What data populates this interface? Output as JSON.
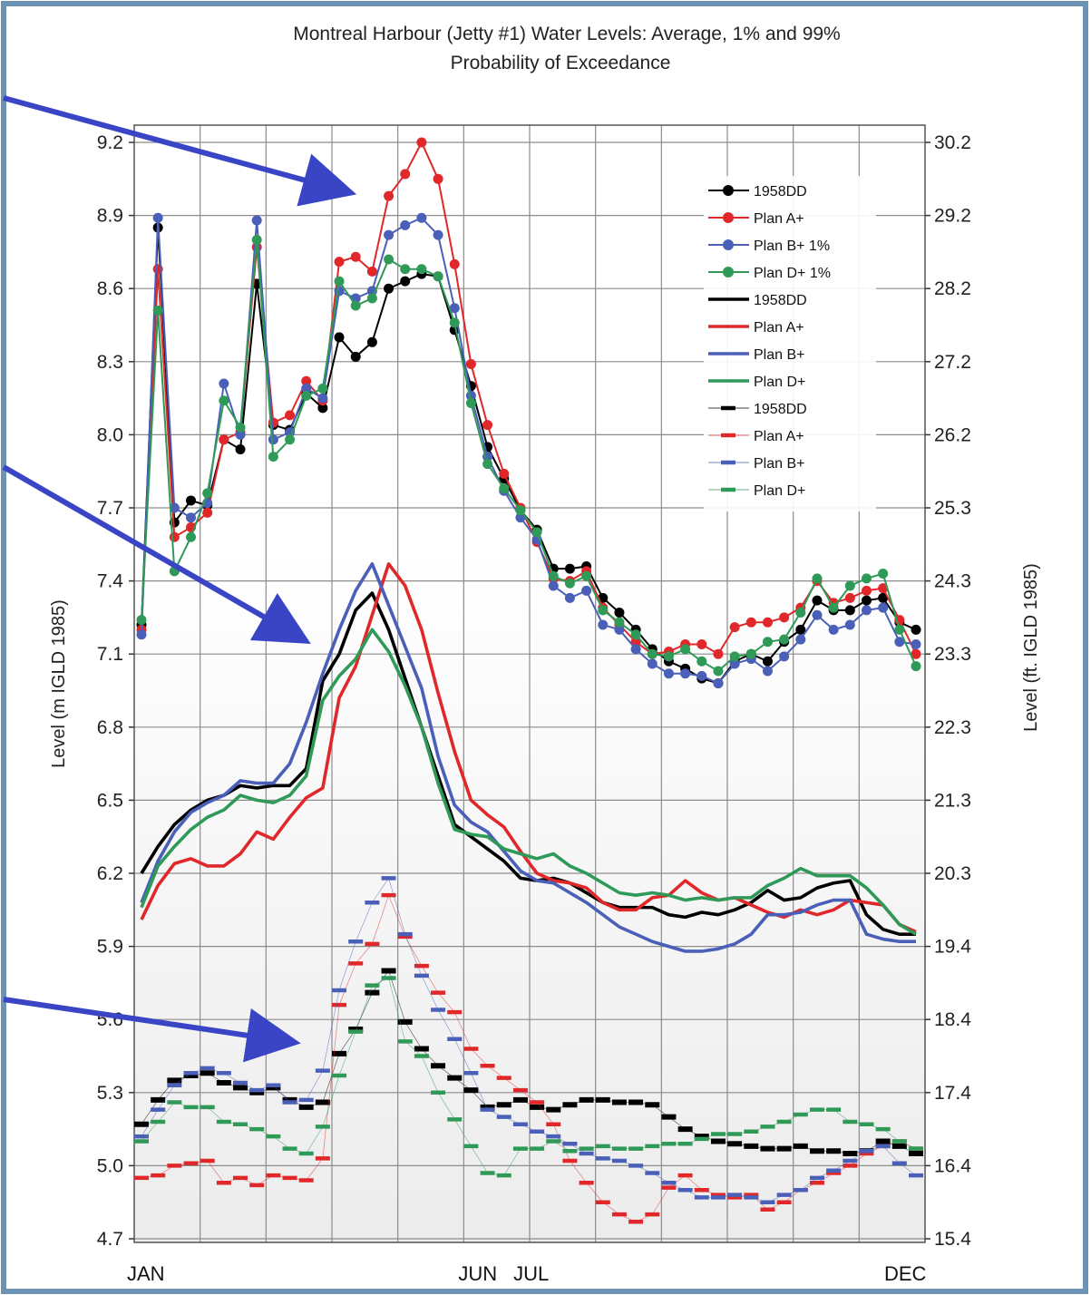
{
  "colors": {
    "frame": "#6c93b3",
    "arrow": "#3a45c6",
    "grid": "#8c8c8c",
    "series_1958DD": "#000000",
    "series_planA": "#e0282a",
    "series_planB": "#4a5fb8",
    "series_planD": "#2f9a58"
  },
  "chart_data": {
    "type": "line",
    "title": "Montreal Harbour (Jetty #1) Water Levels: Average, 1% and 99%",
    "subtitle": "Probability of Exceedance",
    "ylabel_left": "Level (m IGLD 1985)",
    "ylabel_right": "Level (ft. IGLD 1985)",
    "ylim": [
      4.7,
      9.35
    ],
    "y_left_ticks": [
      "9.2",
      "8.9",
      "8.6",
      "8.3",
      "8.0",
      "7.7",
      "7.4",
      "7.1",
      "6.8",
      "6.5",
      "6.2",
      "5.9",
      "5.6",
      "5.3",
      "5.0",
      "4.7"
    ],
    "y_left_tick_values": [
      9.2,
      8.9,
      8.6,
      8.3,
      8.0,
      7.7,
      7.4,
      7.1,
      6.8,
      6.5,
      6.2,
      5.9,
      5.6,
      5.3,
      5.0,
      4.7
    ],
    "y_right_ticks": [
      "30.2",
      "29.2",
      "28.2",
      "27.2",
      "26.2",
      "25.3",
      "24.3",
      "23.3",
      "22.3",
      "21.3",
      "20.3",
      "19.4",
      "18.4",
      "17.4",
      "16.4",
      "15.4"
    ],
    "month_labels": [
      {
        "label": "JAN",
        "week": 0
      },
      {
        "label": "JUN",
        "week": 20
      },
      {
        "label": "JUL",
        "week": 24
      },
      {
        "label": "DEC",
        "week": 48
      }
    ],
    "weeks": 48,
    "grid": true,
    "legend_position": "top-right",
    "legend": [
      {
        "label": "1958DD",
        "style": "dot"
      },
      {
        "label": "Plan A+",
        "style": "dot"
      },
      {
        "label": "Plan B+ 1%",
        "style": "dot"
      },
      {
        "label": "Plan D+ 1%",
        "style": "dot"
      },
      {
        "label": "1958DD",
        "style": "thick"
      },
      {
        "label": "Plan A+",
        "style": "thick"
      },
      {
        "label": "Plan B+",
        "style": "thick"
      },
      {
        "label": "Plan D+",
        "style": "thick"
      },
      {
        "label": "1958DD",
        "style": "dash"
      },
      {
        "label": "Plan A+",
        "style": "dash"
      },
      {
        "label": "Plan B+",
        "style": "dash"
      },
      {
        "label": "Plan D+",
        "style": "dash"
      }
    ],
    "series": [
      {
        "name": "1958DD",
        "group": "1%",
        "style": "dot",
        "values": [
          7.22,
          8.85,
          7.64,
          7.73,
          7.71,
          7.98,
          7.94,
          8.62,
          8.04,
          8.02,
          8.17,
          8.11,
          8.4,
          8.32,
          8.38,
          8.6,
          8.63,
          8.66,
          8.65,
          8.43,
          8.2,
          7.95,
          7.82,
          7.69,
          7.61,
          7.45,
          7.45,
          7.46,
          7.33,
          7.27,
          7.2,
          7.12,
          7.07,
          7.04,
          7.0,
          6.98,
          7.07,
          7.1,
          7.07,
          7.15,
          7.2,
          7.32,
          7.28,
          7.28,
          7.32,
          7.33,
          7.23,
          7.2
        ]
      },
      {
        "name": "Plan A+",
        "group": "1%",
        "style": "dot",
        "values": [
          7.2,
          8.68,
          7.58,
          7.62,
          7.68,
          7.98,
          8.01,
          8.77,
          8.05,
          8.08,
          8.22,
          8.14,
          8.71,
          8.73,
          8.67,
          8.98,
          9.07,
          9.2,
          9.05,
          8.7,
          8.29,
          8.04,
          7.84,
          7.7,
          7.56,
          7.41,
          7.4,
          7.44,
          7.29,
          7.22,
          7.15,
          7.1,
          7.11,
          7.14,
          7.14,
          7.1,
          7.21,
          7.23,
          7.23,
          7.25,
          7.29,
          7.4,
          7.31,
          7.33,
          7.36,
          7.37,
          7.24,
          7.1
        ]
      },
      {
        "name": "Plan B+ 1%",
        "group": "1%",
        "style": "dot",
        "values": [
          7.18,
          8.89,
          7.7,
          7.66,
          7.72,
          8.21,
          8.0,
          8.88,
          7.98,
          8.01,
          8.19,
          8.15,
          8.59,
          8.56,
          8.59,
          8.82,
          8.86,
          8.89,
          8.82,
          8.52,
          8.16,
          7.91,
          7.77,
          7.66,
          7.57,
          7.38,
          7.33,
          7.36,
          7.22,
          7.2,
          7.12,
          7.06,
          7.02,
          7.02,
          7.01,
          6.98,
          7.06,
          7.08,
          7.03,
          7.09,
          7.16,
          7.26,
          7.2,
          7.22,
          7.28,
          7.29,
          7.15,
          7.14
        ]
      },
      {
        "name": "Plan D+ 1%",
        "group": "1%",
        "style": "dot",
        "values": [
          7.24,
          8.51,
          7.44,
          7.58,
          7.76,
          8.14,
          8.03,
          8.8,
          7.91,
          7.98,
          8.16,
          8.19,
          8.63,
          8.53,
          8.56,
          8.72,
          8.68,
          8.68,
          8.65,
          8.46,
          8.13,
          7.88,
          7.78,
          7.69,
          7.6,
          7.42,
          7.39,
          7.42,
          7.28,
          7.23,
          7.18,
          7.1,
          7.09,
          7.12,
          7.07,
          7.03,
          7.09,
          7.1,
          7.15,
          7.16,
          7.27,
          7.41,
          7.29,
          7.38,
          7.41,
          7.43,
          7.2,
          7.05
        ]
      },
      {
        "name": "1958DD",
        "group": "average",
        "style": "thick",
        "values": [
          6.2,
          6.31,
          6.4,
          6.46,
          6.5,
          6.52,
          6.56,
          6.55,
          6.56,
          6.56,
          6.63,
          6.99,
          7.1,
          7.28,
          7.35,
          7.2,
          7.0,
          6.8,
          6.6,
          6.4,
          6.35,
          6.3,
          6.25,
          6.18,
          6.17,
          6.18,
          6.16,
          6.12,
          6.08,
          6.06,
          6.06,
          6.06,
          6.03,
          6.02,
          6.04,
          6.03,
          6.05,
          6.08,
          6.13,
          6.09,
          6.1,
          6.14,
          6.16,
          6.17,
          6.03,
          5.97,
          5.95,
          5.95
        ]
      },
      {
        "name": "Plan A+",
        "group": "average",
        "style": "thick",
        "values": [
          6.01,
          6.15,
          6.24,
          6.26,
          6.23,
          6.23,
          6.28,
          6.37,
          6.34,
          6.43,
          6.51,
          6.55,
          6.92,
          7.05,
          7.26,
          7.47,
          7.38,
          7.2,
          6.94,
          6.7,
          6.5,
          6.44,
          6.39,
          6.29,
          6.2,
          6.17,
          6.16,
          6.14,
          6.08,
          6.05,
          6.05,
          6.1,
          6.11,
          6.17,
          6.12,
          6.09,
          6.1,
          6.07,
          6.04,
          6.02,
          6.05,
          6.03,
          6.05,
          6.09,
          6.08,
          6.07,
          5.99,
          5.96
        ]
      },
      {
        "name": "Plan B+",
        "group": "average",
        "style": "thick",
        "values": [
          6.08,
          6.25,
          6.37,
          6.45,
          6.49,
          6.52,
          6.58,
          6.57,
          6.57,
          6.65,
          6.82,
          7.02,
          7.2,
          7.36,
          7.47,
          7.3,
          7.13,
          6.96,
          6.68,
          6.48,
          6.41,
          6.37,
          6.29,
          6.21,
          6.17,
          6.16,
          6.12,
          6.08,
          6.03,
          5.98,
          5.95,
          5.92,
          5.9,
          5.88,
          5.88,
          5.89,
          5.91,
          5.95,
          6.03,
          6.03,
          6.04,
          6.07,
          6.09,
          6.09,
          5.95,
          5.93,
          5.92,
          5.92
        ]
      },
      {
        "name": "Plan D+",
        "group": "average",
        "style": "thick",
        "values": [
          6.06,
          6.23,
          6.31,
          6.38,
          6.43,
          6.46,
          6.52,
          6.5,
          6.49,
          6.52,
          6.6,
          6.91,
          7.01,
          7.08,
          7.2,
          7.11,
          6.97,
          6.8,
          6.57,
          6.38,
          6.36,
          6.35,
          6.3,
          6.28,
          6.26,
          6.28,
          6.23,
          6.2,
          6.16,
          6.12,
          6.11,
          6.12,
          6.11,
          6.09,
          6.1,
          6.09,
          6.1,
          6.1,
          6.15,
          6.18,
          6.22,
          6.19,
          6.19,
          6.19,
          6.14,
          6.07,
          5.99,
          5.95
        ]
      },
      {
        "name": "1958DD",
        "group": "99%",
        "style": "dash",
        "values": [
          5.17,
          5.27,
          5.35,
          5.37,
          5.38,
          5.34,
          5.32,
          5.3,
          5.32,
          5.27,
          5.24,
          5.26,
          5.46,
          5.56,
          5.71,
          5.8,
          5.59,
          5.48,
          5.41,
          5.36,
          5.31,
          5.24,
          5.25,
          5.27,
          5.24,
          5.23,
          5.25,
          5.27,
          5.27,
          5.26,
          5.26,
          5.25,
          5.2,
          5.15,
          5.12,
          5.1,
          5.09,
          5.08,
          5.07,
          5.07,
          5.08,
          5.06,
          5.06,
          5.05,
          5.06,
          5.1,
          5.08,
          5.05
        ]
      },
      {
        "name": "Plan A+",
        "group": "99%",
        "style": "dash",
        "values": [
          4.95,
          4.96,
          5.0,
          5.01,
          5.02,
          4.93,
          4.95,
          4.92,
          4.96,
          4.95,
          4.94,
          5.03,
          5.66,
          5.83,
          5.91,
          6.11,
          5.94,
          5.82,
          5.71,
          5.63,
          5.48,
          5.41,
          5.36,
          5.31,
          5.26,
          5.17,
          5.02,
          4.93,
          4.85,
          4.8,
          4.77,
          4.8,
          4.91,
          4.96,
          4.9,
          4.88,
          4.87,
          4.88,
          4.82,
          4.85,
          4.9,
          4.93,
          4.97,
          5.0,
          5.05,
          5.08,
          5.1,
          5.07
        ]
      },
      {
        "name": "Plan B+",
        "group": "99%",
        "style": "dash",
        "values": [
          5.12,
          5.23,
          5.33,
          5.38,
          5.4,
          5.38,
          5.34,
          5.31,
          5.33,
          5.26,
          5.27,
          5.39,
          5.72,
          5.92,
          6.08,
          6.18,
          5.95,
          5.78,
          5.64,
          5.52,
          5.38,
          5.23,
          5.2,
          5.17,
          5.14,
          5.12,
          5.09,
          5.05,
          5.03,
          5.02,
          5.0,
          4.97,
          4.93,
          4.9,
          4.87,
          4.87,
          4.88,
          4.87,
          4.85,
          4.88,
          4.9,
          4.95,
          4.98,
          5.02,
          5.06,
          5.08,
          5.01,
          4.96
        ]
      },
      {
        "name": "Plan D+",
        "group": "99%",
        "style": "dash",
        "values": [
          5.1,
          5.18,
          5.26,
          5.24,
          5.24,
          5.18,
          5.17,
          5.15,
          5.12,
          5.07,
          5.05,
          5.16,
          5.37,
          5.55,
          5.74,
          5.77,
          5.51,
          5.45,
          5.3,
          5.19,
          5.08,
          4.97,
          4.96,
          5.07,
          5.07,
          5.1,
          5.06,
          5.07,
          5.08,
          5.07,
          5.07,
          5.08,
          5.09,
          5.09,
          5.11,
          5.13,
          5.13,
          5.14,
          5.16,
          5.18,
          5.21,
          5.23,
          5.23,
          5.18,
          5.17,
          5.15,
          5.1,
          5.07
        ]
      }
    ]
  }
}
